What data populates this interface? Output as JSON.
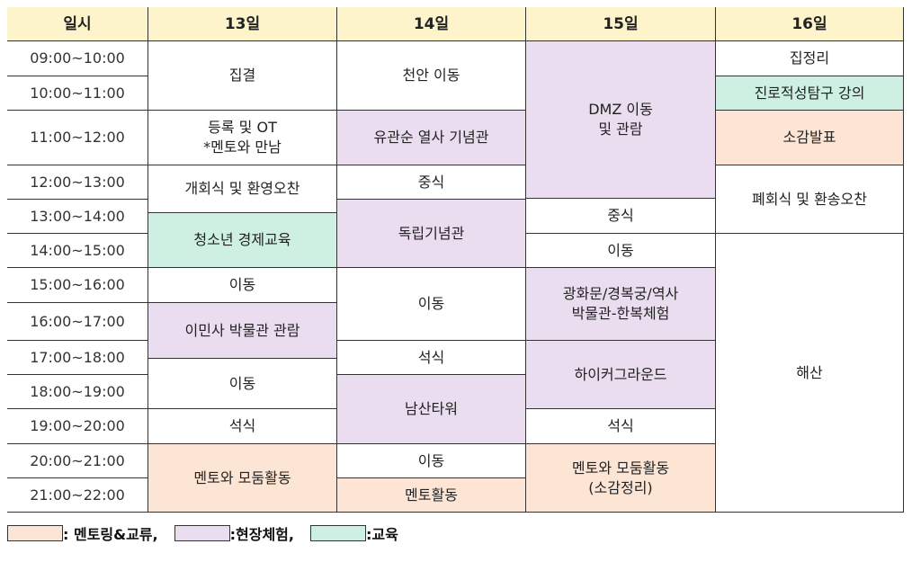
{
  "colors": {
    "header": "#fef4cb",
    "mentoring": "#fde5d5",
    "field": "#e9ddef",
    "edu": "#cdf0e2"
  },
  "header": [
    "일시",
    "13일",
    "14일",
    "15일",
    "16일"
  ],
  "times": [
    "09:00~10:00",
    "10:00~11:00",
    "11:00~12:00",
    "12:00~13:00",
    "13:00~14:00",
    "14:00~15:00",
    "15:00~16:00",
    "16:00~17:00",
    "17:00~18:00",
    "18:00~19:00",
    "19:00~20:00",
    "20:00~21:00",
    "21:00~22:00"
  ],
  "days": [
    {
      "cells": [
        {
          "text": "집결",
          "category": "none"
        },
        {
          "text": "등록 및 OT\n*멘토와 만남",
          "category": "none"
        },
        {
          "text": "개회식 및 환영오찬",
          "category": "none"
        },
        {
          "text": "청소년 경제교육",
          "category": "edu"
        },
        {
          "text": "이동",
          "category": "none"
        },
        {
          "text": "이민사 박물관 관람",
          "category": "field"
        },
        {
          "text": "이동",
          "category": "none"
        },
        {
          "text": "석식",
          "category": "none"
        },
        {
          "text": "멘토와 모둠활동",
          "category": "mentoring"
        }
      ]
    },
    {
      "cells": [
        {
          "text": "천안 이동",
          "category": "none"
        },
        {
          "text": "유관순 열사 기념관",
          "category": "field"
        },
        {
          "text": "중식",
          "category": "none"
        },
        {
          "text": "독립기념관",
          "category": "field"
        },
        {
          "text": "이동",
          "category": "none"
        },
        {
          "text": "석식",
          "category": "none"
        },
        {
          "text": "남산타워",
          "category": "field"
        },
        {
          "text": "이동",
          "category": "none"
        },
        {
          "text": "멘토활동",
          "category": "mentoring"
        }
      ]
    },
    {
      "cells": [
        {
          "text": "DMZ 이동\n및 관람",
          "category": "field"
        },
        {
          "text": "중식",
          "category": "none"
        },
        {
          "text": "이동",
          "category": "none"
        },
        {
          "text": "광화문/경복궁/역사\n박물관-한복체험",
          "category": "field"
        },
        {
          "text": "하이커그라운드",
          "category": "field"
        },
        {
          "text": "석식",
          "category": "none"
        },
        {
          "text": "멘토와 모둠활동\n(소감정리)",
          "category": "mentoring"
        }
      ]
    },
    {
      "cells": [
        {
          "text": "집정리",
          "category": "none"
        },
        {
          "text": "진로적성탐구 강의",
          "category": "edu"
        },
        {
          "text": "소감발표",
          "category": "mentoring"
        },
        {
          "text": "폐회식 및 환송오찬",
          "category": "none"
        },
        {
          "text": "해산",
          "category": "none"
        }
      ]
    }
  ],
  "legend": [
    {
      "label": ": 멘토링&교류,",
      "category": "mentoring"
    },
    {
      "label": ":현장체험,",
      "category": "field"
    },
    {
      "label": ":교육",
      "category": "edu"
    }
  ]
}
